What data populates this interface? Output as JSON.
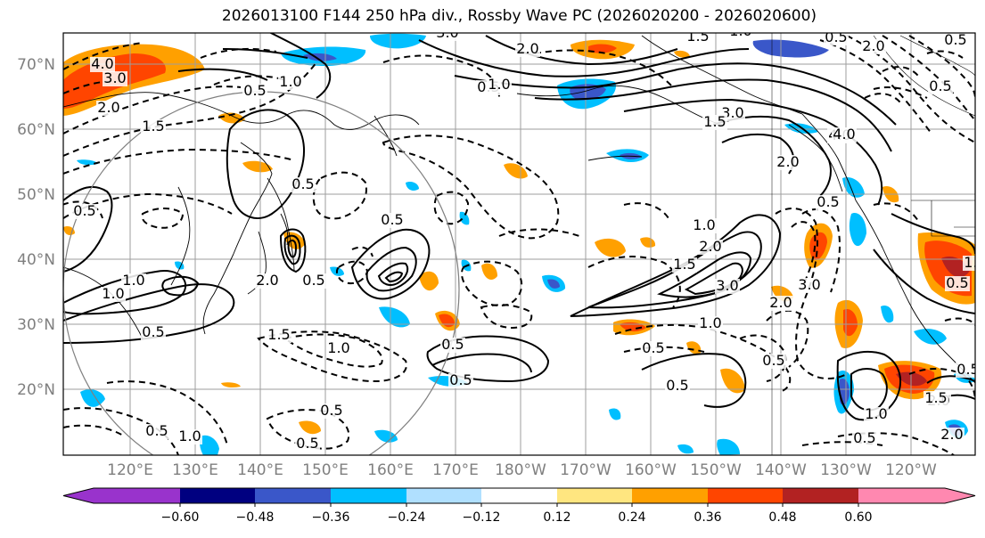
{
  "title": "2026013100 F144 250 hPa div., Rossby Wave PC (2026020200 - 2026020600)",
  "lat_labels": [
    "70°N",
    "60°N",
    "50°N",
    "40°N",
    "30°N",
    "20°N"
  ],
  "lon_labels": [
    "120°E",
    "130°E",
    "140°E",
    "150°E",
    "160°E",
    "170°E",
    "180°W",
    "170°W",
    "160°W",
    "150°W",
    "140°W",
    "130°W",
    "120°W"
  ],
  "colorbar": {
    "colors": [
      "#9933cc",
      "#000080",
      "#3a57c9",
      "#00bfff",
      "#b0e0ff",
      "#ffffff",
      "#ffe680",
      "#ffa000",
      "#ff4500",
      "#b22222",
      "#ff88b0"
    ],
    "tick_labels": [
      "−0.60",
      "−0.48",
      "−0.36",
      "−0.24",
      "−0.12",
      "0.12",
      "0.24",
      "0.36",
      "0.48",
      "0.60"
    ]
  },
  "contour_labels": [
    "3.0",
    "1.5",
    "1.0",
    "0.5",
    "4.0",
    "3.0",
    "2.0",
    "1.5",
    "0.5",
    "1.0",
    "1.0",
    "3.0",
    "2.0",
    "1.5",
    "4.0",
    "2.0",
    "0.5",
    "2.0",
    "0.5",
    "0.5",
    "0.5",
    "0.5",
    "0.5",
    "0.5",
    "2.0",
    "1.0",
    "1.0",
    "1.5",
    "1.0",
    "0.5",
    "0.5",
    "0.5",
    "0.5",
    "1.0",
    "2.0",
    "1.5",
    "3.0",
    "2.0",
    "3.0",
    "1.0",
    "0.5",
    "0.5",
    "0.5",
    "1.0",
    "2.0",
    "0.5",
    "0.5",
    "4.0",
    "2.0",
    "1.0",
    "0.5",
    "0.5",
    "1.5",
    "0.5",
    "1.0",
    "0.5"
  ]
}
